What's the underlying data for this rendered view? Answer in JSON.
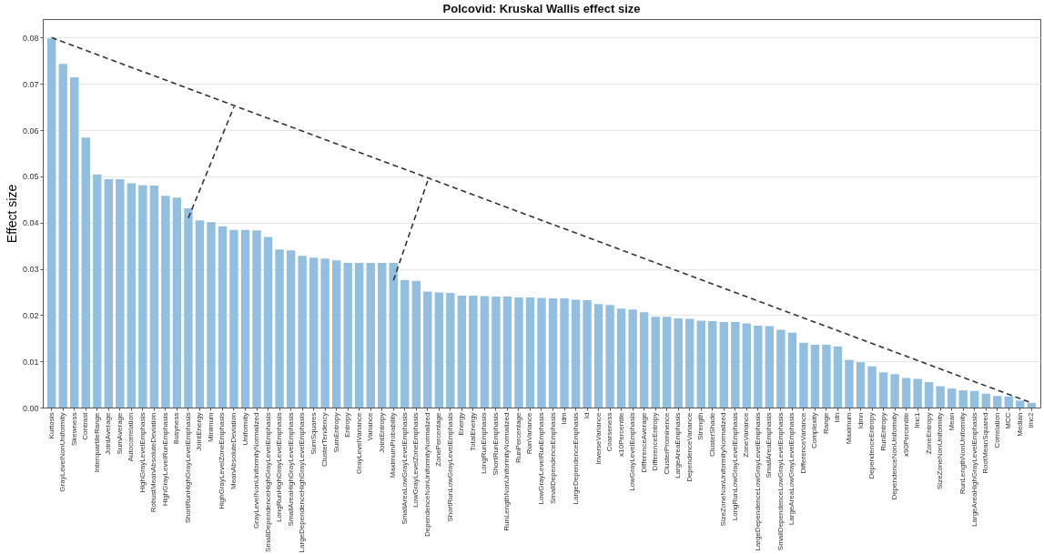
{
  "chart_data": {
    "type": "bar",
    "title": "Polcovid: Kruskal Wallis effect size",
    "ylabel": "Effect size",
    "categories": [
      "Kurtosis",
      "GrayLevelNonUniformity",
      "Skewness",
      "Contrast",
      "InterquartileRange",
      "JointAverage",
      "SumAverage",
      "Autocorrelation",
      "HighGrayLevelEmphasis",
      "RobustMeanAbsoluteDeviation",
      "HighGrayLevelRunEmphasis",
      "Busyness",
      "ShortRunHighGrayLevelEmphasis",
      "JointEnergy",
      "Minimum",
      "HighGrayLevelZoneEmphasis",
      "MeanAbsoluteDeviation",
      "Uniformity",
      "GrayLevelNonUniformityNormalized",
      "SmallDependenceHighGrayLevelEmphasis",
      "LongRunHighGrayLevelEmphasis",
      "SmallAreaHighGrayLevelEmphasis",
      "LargeDependenceHighGrayLevelEmphasis",
      "SumSquares",
      "ClusterTendency",
      "SumEntropy",
      "Entropy",
      "GrayLevelVariance",
      "Variance",
      "JointEntropy",
      "MaximumProbability",
      "SmallAreaLowGrayLevelEmphasis",
      "LowGrayLevelZoneEmphasis",
      "DependenceNonUniformityNormalized",
      "ZonePercentage",
      "ShortRunLowGrayLevelEmphasis",
      "Energy",
      "TotalEnergy",
      "LongRunEmphasis",
      "ShortRunEmphasis",
      "RunLengthNonUniformityNormalized",
      "RunPercentage",
      "RunVariance",
      "LowGrayLevelRunEmphasis",
      "SmallDependenceEmphasis",
      "Idm",
      "LargeDependenceEmphasis",
      "Id",
      "InverseVariance",
      "Coarseness",
      "x10Percentile",
      "LowGrayLevelEmphasis",
      "DifferenceAverage",
      "DifferenceEntropy",
      "ClusterProminence",
      "LargeAreaEmphasis",
      "DependenceVariance",
      "Strength",
      "ClusterShade",
      "SizeZoneNonUniformityNormalized",
      "LongRunLowGrayLevelEmphasis",
      "ZoneVariance",
      "LargeDependenceLowGrayLevelEmphasis",
      "SmallAreaEmphasis",
      "SmallDependenceLowGrayLevelEmphasis",
      "LargeAreaLowGrayLevelEmphasis",
      "DifferenceVariance",
      "Complexity",
      "Range",
      "Idn",
      "Maximum",
      "Idmn",
      "DependenceEntropy",
      "RunEntropy",
      "DependenceNonUniformity",
      "x90Percentile",
      "Imc1",
      "ZoneEntropy",
      "SizeZoneNonUniformity",
      "Mean",
      "RunLengthNonUniformity",
      "LargeAreaHighGrayLevelEmphasis",
      "RootMeanSquared",
      "Correlation",
      "MCC",
      "Median",
      "Imc2"
    ],
    "series": [
      {
        "color": "#92bfe0",
        "values": [
          0.0798,
          0.0743,
          0.0714,
          0.0584,
          0.0504,
          0.0494,
          0.0494,
          0.0485,
          0.0481,
          0.048,
          0.0458,
          0.0454,
          0.0431,
          0.0405,
          0.0401,
          0.0392,
          0.0384,
          0.0384,
          0.0383,
          0.0369,
          0.0342,
          0.034,
          0.0328,
          0.0324,
          0.0322,
          0.0318,
          0.0313,
          0.0313,
          0.0313,
          0.0313,
          0.0313,
          0.0276,
          0.0274,
          0.0251,
          0.0249,
          0.0248,
          0.0242,
          0.0242,
          0.0241,
          0.024,
          0.024,
          0.0238,
          0.0238,
          0.0237,
          0.0236,
          0.0236,
          0.0233,
          0.0232,
          0.0224,
          0.0222,
          0.0214,
          0.0212,
          0.0206,
          0.0196,
          0.0196,
          0.0193,
          0.0192,
          0.0188,
          0.0187,
          0.0185,
          0.0185,
          0.0182,
          0.0177,
          0.0176,
          0.0168,
          0.0162,
          0.014,
          0.0136,
          0.0136,
          0.0132,
          0.0103,
          0.0098,
          0.0089,
          0.0076,
          0.0072,
          0.0064,
          0.0062,
          0.0055,
          0.0046,
          0.0041,
          0.0037,
          0.0036,
          0.003,
          0.0025,
          0.0024,
          0.0015,
          0.001
        ]
      },
      {
        "type": "line",
        "color": "#333333",
        "line_style": "dashed",
        "x": [
          "Kurtosis",
          "Imc2"
        ],
        "values": [
          0.08,
          0.001
        ]
      },
      {
        "type": "line",
        "color": "#333333",
        "line_style": "dashed",
        "x": [
          "ShortRunHighGrayLevelEmphasis",
          "MeanAbsoluteDeviation"
        ],
        "values": [
          0.041,
          0.065
        ]
      },
      {
        "type": "line",
        "color": "#333333",
        "line_style": "dashed",
        "x": [
          "MaximumProbability",
          "DependenceNonUniformityNormalized"
        ],
        "values": [
          0.0275,
          0.049
        ]
      }
    ],
    "ylim": [
      0,
      0.084
    ],
    "yticks": [
      {
        "value": 0,
        "label": "0.00"
      },
      {
        "value": 0.01,
        "label": "0.01"
      },
      {
        "value": 0.02,
        "label": "0.02"
      },
      {
        "value": 0.03,
        "label": "0.03"
      },
      {
        "value": 0.04,
        "label": "0.04"
      },
      {
        "value": 0.05,
        "label": "0.05"
      },
      {
        "value": 0.06,
        "label": "0.06"
      },
      {
        "value": 0.07,
        "label": "0.07"
      },
      {
        "value": 0.08,
        "label": "0.08"
      }
    ],
    "grid": "y",
    "marker": "none"
  }
}
